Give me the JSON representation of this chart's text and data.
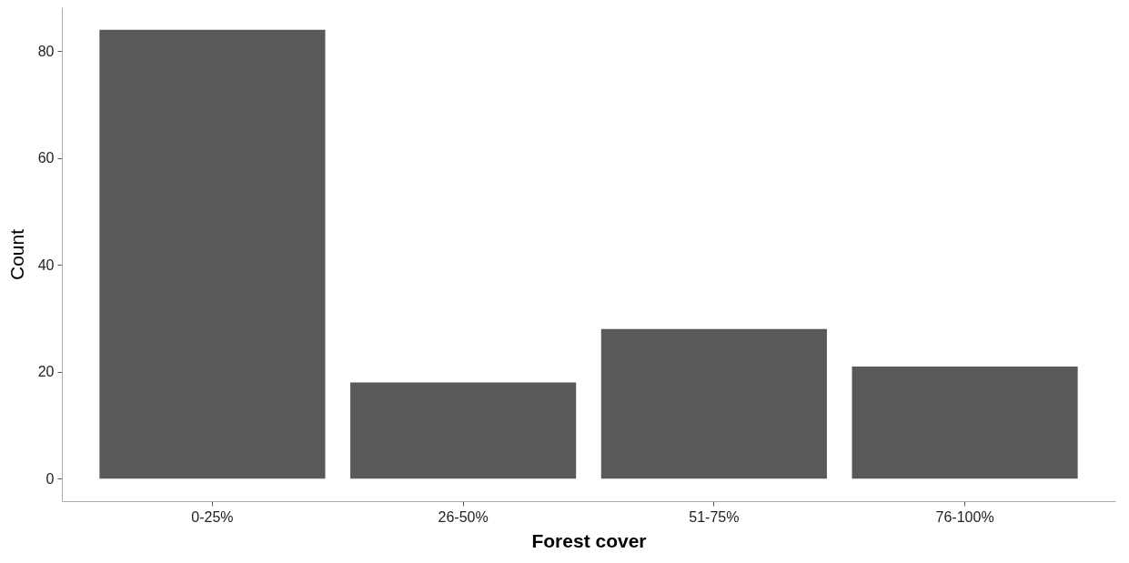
{
  "chart_data": {
    "type": "bar",
    "xlabel": "Forest cover",
    "ylabel": "Count",
    "categories": [
      "0-25%",
      "26-50%",
      "51-75%",
      "76-100%"
    ],
    "values": [
      84,
      18,
      28,
      21
    ],
    "color": "#595959",
    "ylim": [
      -4.2,
      88.2
    ],
    "yticks": [
      0,
      20,
      40,
      60,
      80
    ],
    "grid": false,
    "legend": false
  }
}
